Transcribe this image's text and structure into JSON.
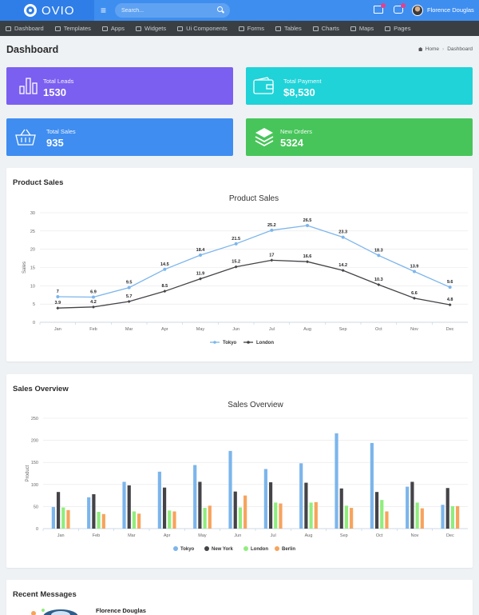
{
  "brand": {
    "name": "OVIO"
  },
  "header": {
    "menu_glyph": "≡",
    "search_placeholder": "Search...",
    "user_name": "Florence Douglas"
  },
  "nav": {
    "items": [
      {
        "label": "Dashboard",
        "icon": "dashboard-icon"
      },
      {
        "label": "Templates",
        "icon": "monitor-icon"
      },
      {
        "label": "Apps",
        "icon": "apps-icon"
      },
      {
        "label": "Widgets",
        "icon": "widgets-icon"
      },
      {
        "label": "Ui Components",
        "icon": "components-icon"
      },
      {
        "label": "Forms",
        "icon": "forms-icon"
      },
      {
        "label": "Tables",
        "icon": "tables-icon"
      },
      {
        "label": "Charts",
        "icon": "charts-icon"
      },
      {
        "label": "Maps",
        "icon": "map-pin-icon"
      },
      {
        "label": "Pages",
        "icon": "pages-icon"
      }
    ]
  },
  "page": {
    "title": "Dashboard",
    "breadcrumb": {
      "home": "Home",
      "current": "Dashboard"
    }
  },
  "stats": [
    {
      "label": "Total Leads",
      "value": "1530",
      "color": "#7b5ff0",
      "icon": "bar-chart-icon"
    },
    {
      "label": "Total Payment",
      "value": "$8,530",
      "color": "#1fd3d8",
      "icon": "wallet-icon"
    },
    {
      "label": "Total Sales",
      "value": "935",
      "color": "#3f8df0",
      "icon": "basket-icon"
    },
    {
      "label": "New Orders",
      "value": "5324",
      "color": "#47c55a",
      "icon": "layers-icon"
    }
  ],
  "product_sales": {
    "panel_title": "Product Sales",
    "chart_data": {
      "type": "line",
      "title": "Product Sales",
      "ylabel": "Sales",
      "xlabel": "",
      "ylim": [
        0,
        30
      ],
      "yticks": [
        0,
        5,
        10,
        15,
        20,
        25,
        30
      ],
      "categories": [
        "Jan",
        "Feb",
        "Mar",
        "Apr",
        "May",
        "Jun",
        "Jul",
        "Aug",
        "Sep",
        "Oct",
        "Nov",
        "Dec"
      ],
      "legend_position": "bottom",
      "series": [
        {
          "name": "Tokyo",
          "color": "#7cb5ec",
          "values": [
            7,
            6.9,
            9.5,
            14.5,
            18.4,
            21.5,
            25.2,
            26.5,
            23.3,
            18.3,
            13.9,
            9.6
          ]
        },
        {
          "name": "London",
          "color": "#434348",
          "values": [
            3.9,
            4.2,
            5.7,
            8.5,
            11.9,
            15.2,
            17,
            16.6,
            14.2,
            10.3,
            6.6,
            4.8
          ]
        }
      ]
    }
  },
  "sales_overview": {
    "panel_title": "Sales Overview",
    "chart_data": {
      "type": "bar",
      "title": "Sales Overview",
      "ylabel": "Product",
      "xlabel": "",
      "ylim": [
        0,
        250
      ],
      "yticks": [
        0,
        50,
        100,
        150,
        200,
        250
      ],
      "categories": [
        "Jan",
        "Feb",
        "Mar",
        "Apr",
        "May",
        "Jun",
        "Jul",
        "Aug",
        "Sep",
        "Oct",
        "Nov",
        "Dec"
      ],
      "legend_position": "bottom",
      "series": [
        {
          "name": "Tokyo",
          "color": "#7cb5ec",
          "values": [
            49,
            71,
            106,
            129,
            144,
            176,
            135,
            148,
            216,
            194,
            95,
            54
          ]
        },
        {
          "name": "New York",
          "color": "#434348",
          "values": [
            83,
            78,
            98,
            93,
            106,
            84,
            105,
            104,
            91,
            83,
            106,
            92
          ]
        },
        {
          "name": "London",
          "color": "#90ed7d",
          "values": [
            48,
            38,
            39,
            41,
            47,
            48,
            59,
            59,
            52,
            65,
            59,
            51
          ]
        },
        {
          "name": "Berlin",
          "color": "#f7a35c",
          "values": [
            42,
            33,
            34,
            39,
            52,
            75,
            57,
            60,
            47,
            39,
            46,
            51
          ]
        }
      ]
    }
  },
  "recent_messages": {
    "panel_title": "Recent Messages",
    "items": [
      {
        "name": "Florence Douglas"
      }
    ]
  }
}
